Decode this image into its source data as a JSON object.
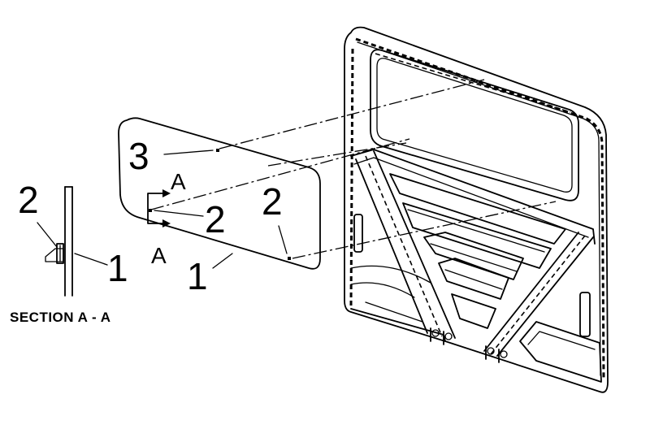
{
  "callouts": {
    "glass": "3",
    "tape_main": "2",
    "tape_corner": "2",
    "panel": "1",
    "section_tape": "2",
    "section_panel": "1",
    "section_mark_top": "A",
    "section_mark_bottom": "A"
  },
  "section_caption": "SECTION A - A"
}
